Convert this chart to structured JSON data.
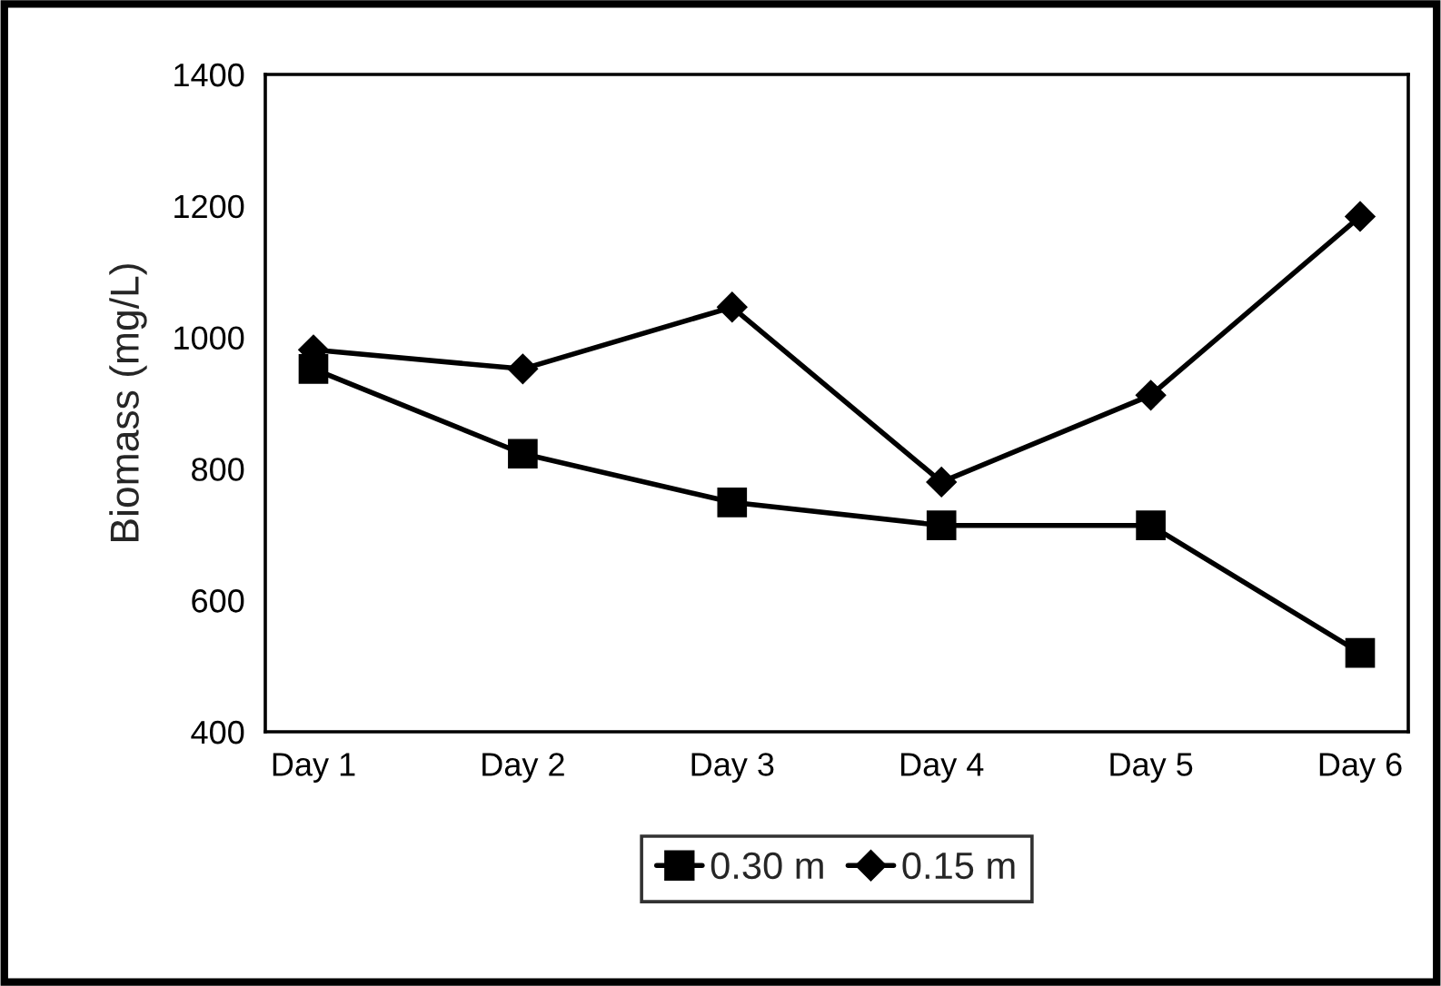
{
  "chart_data": {
    "type": "line",
    "ylabel": "Biomass (mg/L)",
    "categories": [
      "Day 1",
      "Day 2",
      "Day 3",
      "Day 4",
      "Day 5",
      "Day 6"
    ],
    "series": [
      {
        "name": "0.30 m",
        "color": "#000000",
        "marker": "square",
        "values": [
          952,
          823,
          749,
          714,
          714,
          520
        ]
      },
      {
        "name": "0.15 m",
        "color": "#000000",
        "marker": "diamond",
        "values": [
          981,
          952,
          1046,
          780,
          912,
          1184
        ]
      }
    ],
    "ylim": [
      400,
      1400
    ],
    "yticks": [
      400,
      600,
      800,
      1000,
      1200,
      1400
    ],
    "grid": false,
    "legend": "bottom"
  }
}
